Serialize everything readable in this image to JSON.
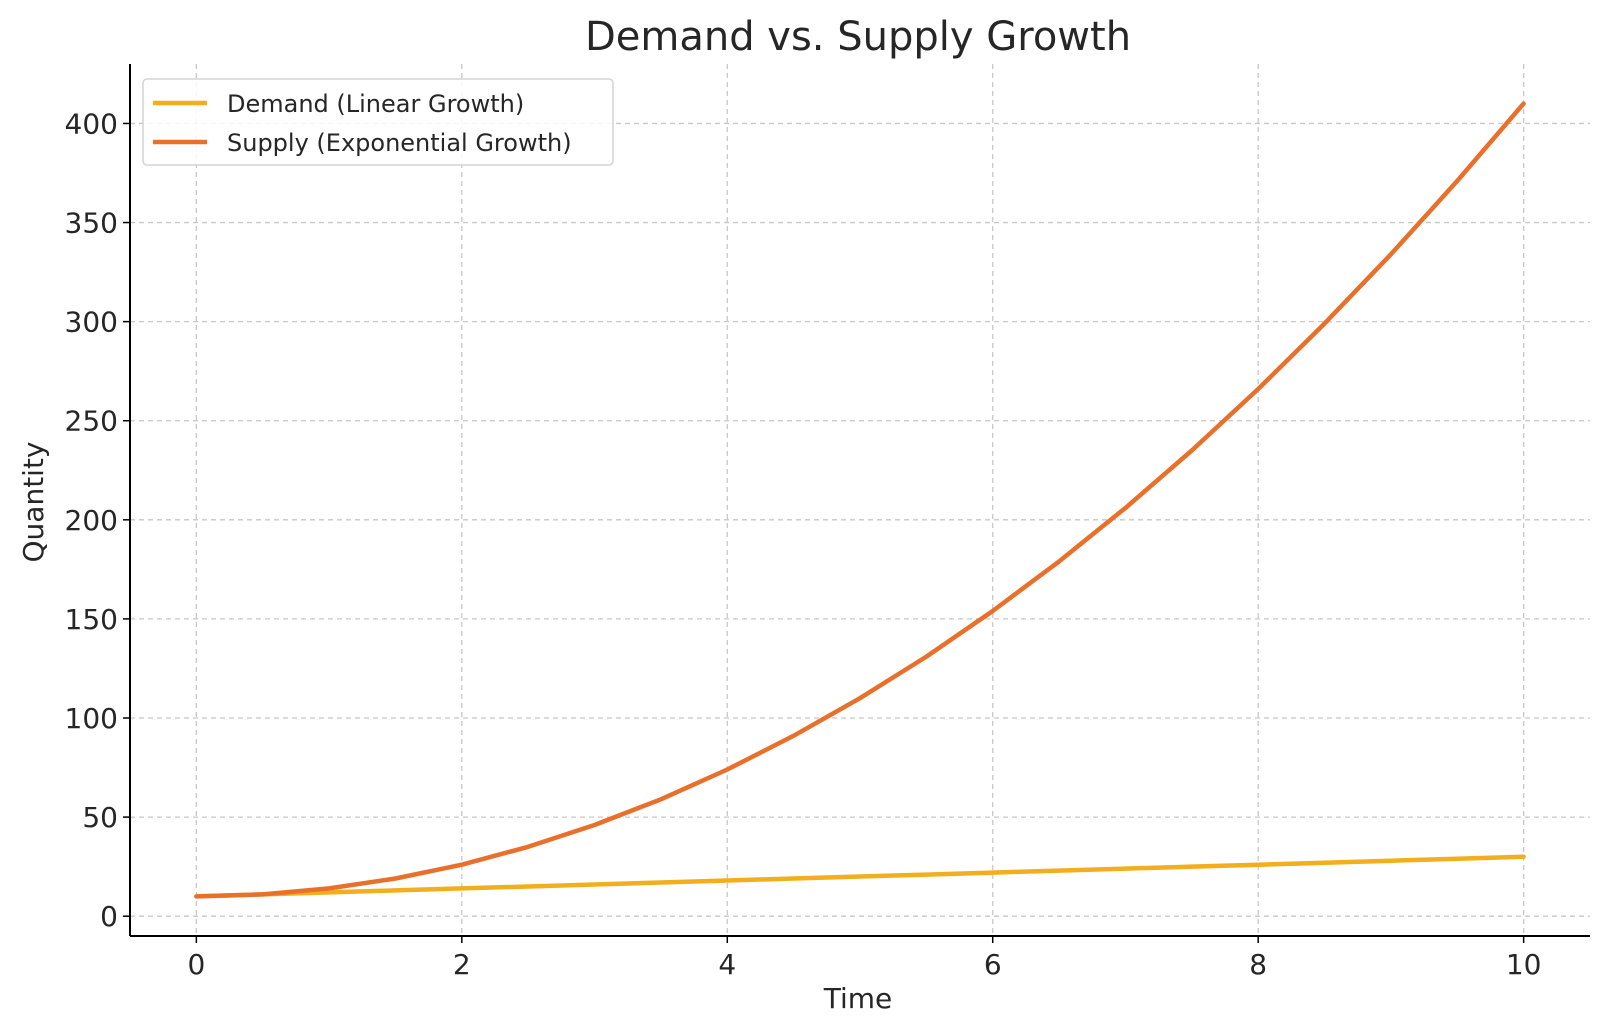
{
  "chart_data": {
    "type": "line",
    "title": "Demand vs. Supply Growth",
    "xlabel": "Time",
    "ylabel": "Quantity",
    "xlim": [
      -0.5,
      10.5
    ],
    "ylim": [
      -10,
      430
    ],
    "grid": true,
    "legend_position": "top-left",
    "xticks": [
      0,
      2,
      4,
      6,
      8,
      10
    ],
    "xtick_labels": [
      "0",
      "2",
      "4",
      "6",
      "8",
      "10"
    ],
    "yticks": [
      0,
      50,
      100,
      150,
      200,
      250,
      300,
      350,
      400
    ],
    "ytick_labels": [
      "0",
      "50",
      "100",
      "150",
      "200",
      "250",
      "300",
      "350",
      "400"
    ],
    "x": [
      0,
      0.5,
      1,
      1.5,
      2,
      2.5,
      3,
      3.5,
      4,
      4.5,
      5,
      5.5,
      6,
      6.5,
      7,
      7.5,
      8,
      8.5,
      9,
      9.5,
      10
    ],
    "series": [
      {
        "name": "Demand (Linear Growth)",
        "color": "#F2AE1C",
        "values": [
          10,
          11,
          12,
          13,
          14,
          15,
          16,
          17,
          18,
          19,
          20,
          21,
          22,
          23,
          24,
          25,
          26,
          27,
          28,
          29,
          30
        ]
      },
      {
        "name": "Supply (Exponential Growth)",
        "color": "#E8702A",
        "values": [
          10,
          11,
          14,
          19,
          26,
          35,
          46,
          59,
          74,
          91,
          110,
          131,
          154,
          179,
          206,
          235,
          266,
          299,
          334,
          371,
          410
        ]
      }
    ]
  }
}
